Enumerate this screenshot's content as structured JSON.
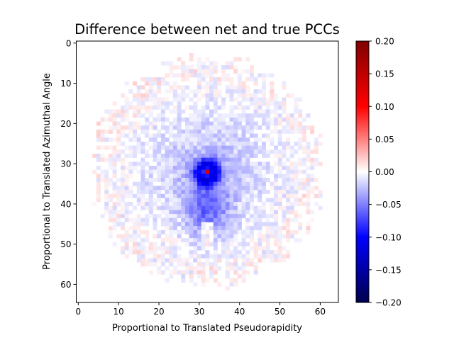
{
  "chart_data": {
    "type": "heatmap",
    "title": "Difference between net and true PCCs",
    "xlabel": "Proportional to Translated Pseudorapidity",
    "ylabel": "Proportional to Translated Azimuthal Angle",
    "grid_size": [
      65,
      65
    ],
    "xlim": [
      -0.5,
      64.5
    ],
    "ylim": [
      64.5,
      -0.5
    ],
    "x_ticks": [
      0,
      10,
      20,
      30,
      40,
      50,
      60
    ],
    "y_ticks": [
      0,
      10,
      20,
      30,
      40,
      50,
      60
    ],
    "colormap": "seismic",
    "colorbar": {
      "vmin": -0.2,
      "vmax": 0.2,
      "ticks": [
        "0.20",
        "0.15",
        "0.10",
        "0.05",
        "0.00",
        "−0.05",
        "−0.10",
        "−0.15",
        "−0.20"
      ],
      "tick_values": [
        0.2,
        0.15,
        0.1,
        0.05,
        0.0,
        -0.05,
        -0.1,
        -0.15,
        -0.2
      ]
    },
    "data_extent": {
      "shape": "disc",
      "center": [
        32,
        32
      ],
      "radius": 28
    },
    "features": [
      {
        "label": "central positive peak",
        "cell": [
          32,
          32
        ],
        "value": 0.13
      },
      {
        "label": "negative ring around center",
        "center": [
          32,
          32
        ],
        "value": -0.09
      },
      {
        "label": "negative lobe below center",
        "center": [
          32,
          41
        ],
        "value": -0.045
      },
      {
        "label": "near-zero channel",
        "center": [
          32,
          49
        ],
        "value": 0.0
      }
    ],
    "background_value": 0.0,
    "noise_amplitude": 0.012
  }
}
